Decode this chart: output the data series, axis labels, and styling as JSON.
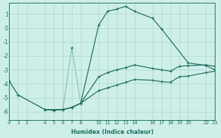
{
  "xlabel": "Humidex (Indice chaleur)",
  "bg_color": "#ceeee8",
  "grid_color": "#aad4cc",
  "line_color": "#1a7060",
  "xlim": [
    0,
    23
  ],
  "ylim": [
    -6.6,
    1.8
  ],
  "xticks": [
    0,
    1,
    2,
    4,
    5,
    6,
    7,
    8,
    10,
    11,
    12,
    13,
    14,
    16,
    17,
    18,
    19,
    20,
    22,
    23
  ],
  "yticks": [
    1,
    0,
    -1,
    -2,
    -3,
    -4,
    -5,
    -6
  ],
  "curve_arc": {
    "x": [
      0,
      1,
      4,
      6,
      7,
      8,
      10,
      11,
      12,
      13,
      14,
      16,
      17,
      20,
      22,
      23
    ],
    "y": [
      -3.8,
      -4.8,
      -5.85,
      -5.85,
      -5.7,
      -5.4,
      0.2,
      1.2,
      1.35,
      1.55,
      1.2,
      0.7,
      -0.05,
      -2.5,
      -2.7,
      -3.0
    ]
  },
  "curve_dotted": {
    "x": [
      0,
      1,
      4,
      5,
      6,
      7,
      8
    ],
    "y": [
      -3.8,
      -4.8,
      -5.85,
      -5.9,
      -5.85,
      -1.4,
      -5.4
    ]
  },
  "curve_mid1": {
    "x": [
      4,
      5,
      6,
      7,
      8,
      10,
      11,
      12,
      13,
      14,
      16,
      17,
      18,
      19,
      20,
      22,
      23
    ],
    "y": [
      -5.85,
      -5.9,
      -5.85,
      -5.7,
      -5.4,
      -3.5,
      -3.2,
      -3.0,
      -2.85,
      -2.65,
      -2.9,
      -3.0,
      -3.1,
      -2.75,
      -2.7,
      -2.65,
      -2.75
    ]
  },
  "curve_low": {
    "x": [
      4,
      5,
      6,
      7,
      8,
      10,
      11,
      12,
      13,
      14,
      16,
      17,
      18,
      19,
      20,
      22,
      23
    ],
    "y": [
      -5.85,
      -5.9,
      -5.85,
      -5.7,
      -5.4,
      -4.5,
      -4.3,
      -4.1,
      -3.9,
      -3.7,
      -3.75,
      -3.85,
      -3.9,
      -3.5,
      -3.45,
      -3.2,
      -3.1
    ]
  }
}
